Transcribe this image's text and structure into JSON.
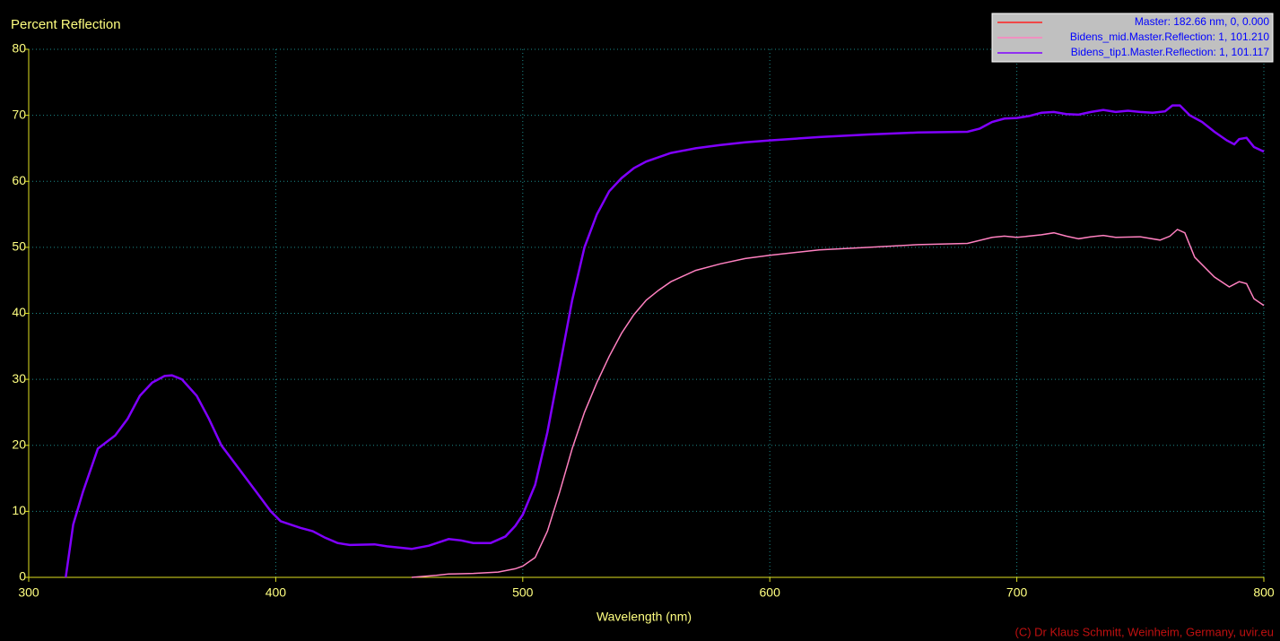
{
  "chart_data": {
    "type": "line",
    "title": "Percent Reflection",
    "x_label": "Wavelength (nm)",
    "credit": "(C) Dr Klaus Schmitt, Weinheim, Germany, uvir.eu",
    "xlim": [
      300,
      800
    ],
    "xticks": [
      300,
      400,
      500,
      600,
      700,
      800
    ],
    "ylim": [
      0,
      80
    ],
    "yticks": [
      0,
      10,
      20,
      30,
      40,
      50,
      60,
      70,
      80
    ],
    "grid": true,
    "legend": "top-right",
    "series": [
      {
        "name": "Master: 182.66 nm, 0, 0.000",
        "color": "#ff2020",
        "x": [],
        "values": []
      },
      {
        "name": "Bidens_mid.Master.Reflection: 1, 101.210",
        "color": "#ff80c0",
        "x": [
          455,
          465,
          470,
          480,
          490,
          497,
          500,
          505,
          510,
          515,
          520,
          525,
          530,
          535,
          540,
          545,
          550,
          555,
          560,
          570,
          580,
          590,
          600,
          620,
          640,
          660,
          680,
          690,
          695,
          700,
          710,
          715,
          720,
          725,
          730,
          735,
          740,
          750,
          758,
          762,
          765,
          768,
          772,
          780,
          786,
          790,
          793,
          796,
          800
        ],
        "values": [
          0,
          0.3,
          0.5,
          0.6,
          0.8,
          1.3,
          1.7,
          3,
          7,
          13,
          19.5,
          25,
          29.5,
          33.5,
          37,
          39.8,
          42,
          43.5,
          44.8,
          46.5,
          47.5,
          48.3,
          48.8,
          49.6,
          50,
          50.4,
          50.6,
          51.5,
          51.7,
          51.5,
          51.9,
          52.2,
          51.7,
          51.3,
          51.6,
          51.8,
          51.5,
          51.6,
          51.1,
          51.7,
          52.7,
          52.2,
          48.5,
          45.5,
          44,
          44.8,
          44.5,
          42.2,
          41.2
        ]
      },
      {
        "name": "Bidens_tip1.Master.Reflection: 1, 101.117",
        "color": "#8000ff",
        "x": [
          315,
          318,
          322,
          328,
          335,
          340,
          345,
          350,
          355,
          358,
          362,
          368,
          373,
          378,
          385,
          392,
          398,
          402,
          410,
          415,
          420,
          425,
          430,
          440,
          445,
          455,
          462,
          470,
          475,
          480,
          487,
          493,
          497,
          500,
          505,
          510,
          515,
          520,
          525,
          530,
          535,
          540,
          545,
          550,
          560,
          570,
          580,
          590,
          600,
          620,
          640,
          660,
          680,
          685,
          690,
          695,
          700,
          705,
          710,
          715,
          720,
          725,
          730,
          735,
          740,
          745,
          750,
          755,
          760,
          763,
          766,
          770,
          775,
          780,
          785,
          788,
          790,
          793,
          796,
          800
        ],
        "values": [
          0,
          8,
          13,
          19.5,
          21.5,
          24,
          27.5,
          29.5,
          30.5,
          30.6,
          30,
          27.5,
          24,
          20,
          16.5,
          13,
          10,
          8.5,
          7.5,
          7,
          6,
          5.2,
          4.9,
          5,
          4.7,
          4.3,
          4.8,
          5.8,
          5.6,
          5.2,
          5.2,
          6.2,
          7.8,
          9.5,
          14,
          22,
          32,
          42,
          50,
          55,
          58.5,
          60.5,
          62,
          63,
          64.3,
          65,
          65.5,
          65.9,
          66.2,
          66.7,
          67.1,
          67.4,
          67.5,
          68,
          69,
          69.5,
          69.6,
          69.9,
          70.4,
          70.5,
          70.2,
          70.1,
          70.5,
          70.8,
          70.5,
          70.7,
          70.5,
          70.4,
          70.6,
          71.5,
          71.5,
          70,
          69,
          67.5,
          66.2,
          65.6,
          66.4,
          66.6,
          65.2,
          64.5
        ]
      }
    ]
  }
}
